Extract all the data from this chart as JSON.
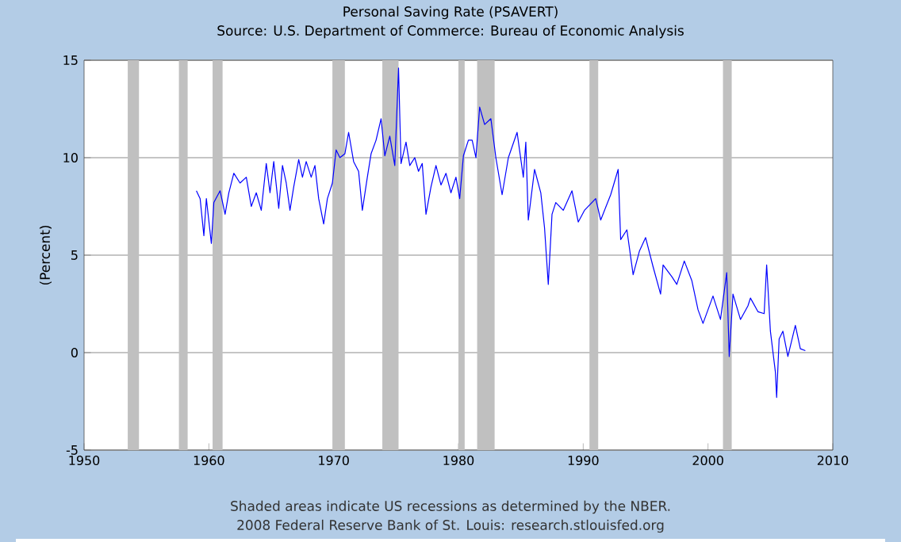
{
  "chart_data": {
    "type": "line",
    "title": "Personal Saving Rate (PSAVERT)",
    "subtitle": "Source: U.S. Department of Commerce: Bureau of Economic Analysis",
    "ylabel": "(Percent)",
    "annotations": [
      "Shaded areas indicate US recessions as determined by the NBER.",
      "2008 Federal Reserve Bank of St. Louis: research.stlouisfed.org"
    ],
    "xlim": [
      1950,
      2010
    ],
    "xticks": [
      1950,
      1960,
      1970,
      1980,
      1990,
      2000,
      2010
    ],
    "ylim": [
      -5,
      15
    ],
    "yticks": [
      -5,
      0,
      5,
      10,
      15
    ],
    "grid": "y",
    "bands": [
      {
        "axis": "x",
        "from": 1953.5,
        "to": 1954.4,
        "color": "#c0c0c0"
      },
      {
        "axis": "x",
        "from": 1957.6,
        "to": 1958.3,
        "color": "#c0c0c0"
      },
      {
        "axis": "x",
        "from": 1960.3,
        "to": 1961.1,
        "color": "#c0c0c0"
      },
      {
        "axis": "x",
        "from": 1969.9,
        "to": 1970.9,
        "color": "#c0c0c0"
      },
      {
        "axis": "x",
        "from": 1973.9,
        "to": 1975.2,
        "color": "#c0c0c0"
      },
      {
        "axis": "x",
        "from": 1980.0,
        "to": 1980.5,
        "color": "#c0c0c0"
      },
      {
        "axis": "x",
        "from": 1981.5,
        "to": 1982.9,
        "color": "#c0c0c0"
      },
      {
        "axis": "x",
        "from": 1990.5,
        "to": 1991.2,
        "color": "#c0c0c0"
      },
      {
        "axis": "x",
        "from": 2001.2,
        "to": 2001.9,
        "color": "#c0c0c0"
      }
    ],
    "series": [
      {
        "color": "#0000ff",
        "x": [
          1959.0,
          1959.3,
          1959.6,
          1959.8,
          1960.2,
          1960.4,
          1960.9,
          1961.3,
          1961.6,
          1962.0,
          1962.5,
          1963.0,
          1963.4,
          1963.8,
          1964.2,
          1964.6,
          1964.9,
          1965.2,
          1965.6,
          1965.9,
          1966.2,
          1966.5,
          1966.8,
          1967.2,
          1967.5,
          1967.8,
          1968.2,
          1968.5,
          1968.8,
          1969.2,
          1969.5,
          1969.9,
          1970.2,
          1970.5,
          1970.9,
          1971.2,
          1971.6,
          1972.0,
          1972.3,
          1972.7,
          1973.0,
          1973.4,
          1973.8,
          1974.1,
          1974.5,
          1974.9,
          1975.2,
          1975.4,
          1975.8,
          1976.1,
          1976.5,
          1976.8,
          1977.1,
          1977.4,
          1977.8,
          1978.2,
          1978.6,
          1979.0,
          1979.4,
          1979.8,
          1980.1,
          1980.4,
          1980.8,
          1981.1,
          1981.4,
          1981.7,
          1982.1,
          1982.6,
          1983.0,
          1983.5,
          1984.0,
          1984.7,
          1985.2,
          1985.4,
          1985.6,
          1986.1,
          1986.6,
          1986.9,
          1987.2,
          1987.5,
          1987.8,
          1988.4,
          1989.1,
          1989.6,
          1990.1,
          1991.0,
          1991.4,
          1992.2,
          1992.8,
          1993.0,
          1993.5,
          1994.0,
          1994.5,
          1995.0,
          1995.6,
          1996.2,
          1996.4,
          1997.1,
          1997.5,
          1998.1,
          1998.7,
          1999.2,
          1999.6,
          2000.4,
          2001.0,
          2001.5,
          2001.7,
          2002.0,
          2002.6,
          2003.2,
          2003.4,
          2004.0,
          2004.5,
          2004.7,
          2005.0,
          2005.4,
          2005.5,
          2005.7,
          2006.0,
          2006.4,
          2007.0,
          2007.4,
          2007.8
        ],
        "values": [
          8.3,
          7.9,
          6.0,
          7.9,
          5.6,
          7.7,
          8.3,
          7.1,
          8.2,
          9.2,
          8.7,
          9.0,
          7.5,
          8.2,
          7.3,
          9.7,
          8.2,
          9.8,
          7.4,
          9.6,
          8.7,
          7.3,
          8.5,
          9.9,
          9.0,
          9.8,
          9.0,
          9.6,
          7.9,
          6.6,
          7.9,
          8.7,
          10.4,
          10.0,
          10.2,
          11.3,
          9.8,
          9.3,
          7.3,
          9.0,
          10.2,
          10.9,
          12.0,
          10.1,
          11.1,
          9.6,
          14.6,
          9.7,
          10.8,
          9.6,
          10.0,
          9.3,
          9.7,
          7.1,
          8.5,
          9.6,
          8.6,
          9.2,
          8.2,
          9.0,
          7.9,
          10.1,
          10.9,
          10.9,
          10.0,
          12.6,
          11.7,
          12.0,
          10.0,
          8.1,
          10.0,
          11.3,
          9.0,
          10.8,
          6.8,
          9.4,
          8.2,
          6.4,
          3.5,
          7.1,
          7.7,
          7.3,
          8.3,
          6.7,
          7.3,
          7.9,
          6.8,
          8.1,
          9.4,
          5.8,
          6.3,
          4.0,
          5.2,
          5.9,
          4.4,
          3.0,
          4.5,
          3.9,
          3.5,
          4.7,
          3.7,
          2.2,
          1.5,
          2.9,
          1.7,
          4.1,
          -0.2,
          3.0,
          1.7,
          2.4,
          2.8,
          2.1,
          2.0,
          4.5,
          1.1,
          -1.0,
          -2.3,
          0.7,
          1.1,
          -0.2,
          1.4,
          0.2,
          0.1
        ]
      }
    ]
  }
}
